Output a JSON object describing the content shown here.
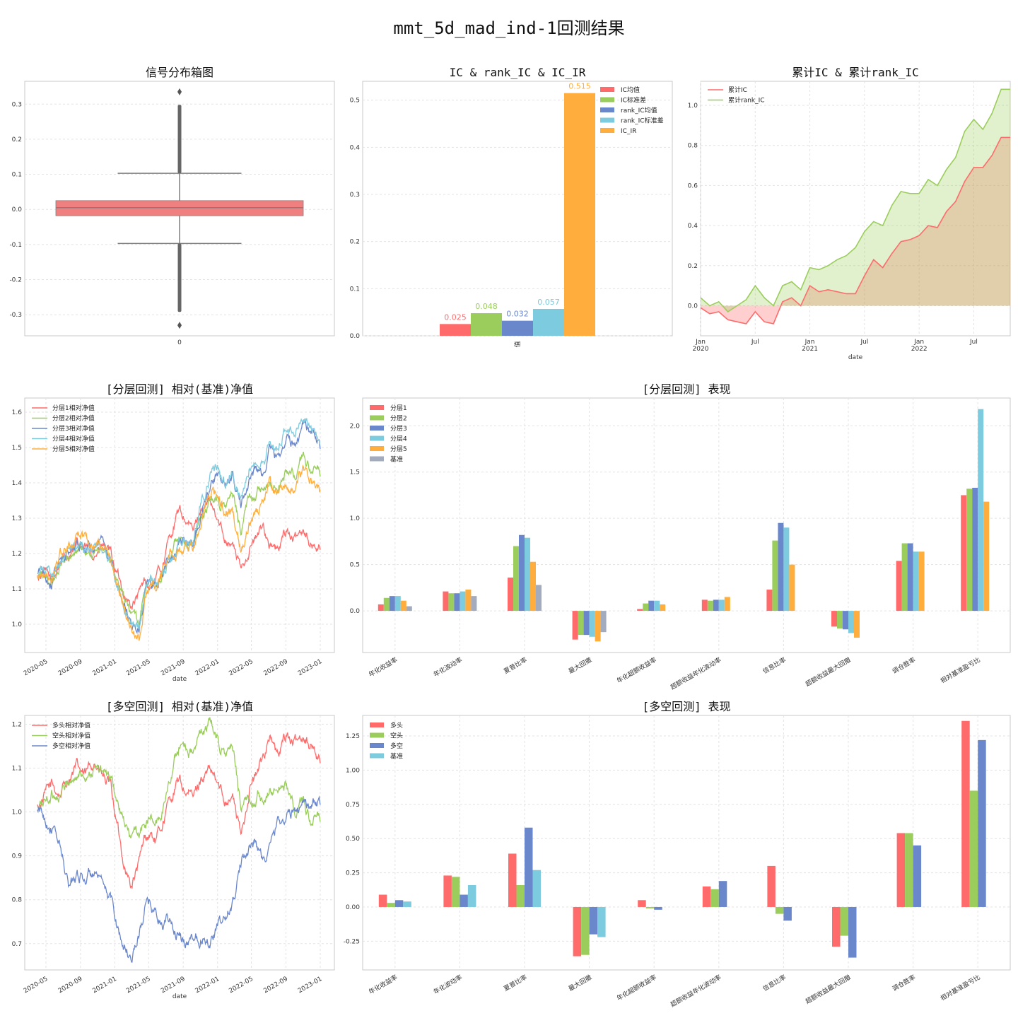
{
  "title": "mmt_5d_mad_ind-1回测结果",
  "colors": {
    "red": "#ff6b6b",
    "green": "#9acd5b",
    "blue": "#6b87cc",
    "cyan": "#7ccbde",
    "orange": "#ffae3d",
    "grey": "#a3acbf",
    "box": "#f08080",
    "whisker": "#7f7f7f"
  },
  "chart_data": [
    {
      "id": "box",
      "type": "box",
      "title": "信号分布箱图",
      "categories": [
        "0"
      ],
      "box": {
        "q1": -0.018,
        "median": 0.005,
        "q3": 0.025,
        "whisker_low": -0.097,
        "whisker_high": 0.103,
        "outlier_low_dense_to": -0.292,
        "outlier_high_dense_to": 0.298,
        "min": -0.33,
        "max": 0.335
      },
      "ylim": [
        -0.36,
        0.365
      ],
      "yticks": [
        "-0.3",
        "-0.2",
        "-0.1",
        "0.0",
        "0.1",
        "0.2",
        "0.3"
      ],
      "grid": true
    },
    {
      "id": "ic_bar",
      "type": "bar",
      "title": "IC & rank_IC & IC_IR",
      "xlabel": "值",
      "series": [
        {
          "name": "IC均值",
          "value": 0.025,
          "label": "0.025"
        },
        {
          "name": "IC标准差",
          "value": 0.048,
          "label": "0.048"
        },
        {
          "name": "rank_IC均值",
          "value": 0.032,
          "label": "0.032"
        },
        {
          "name": "rank_IC标准差",
          "value": 0.057,
          "label": "0.057"
        },
        {
          "name": "IC_IR",
          "value": 0.515,
          "label": "0.515"
        }
      ],
      "ylim": [
        0,
        0.54
      ],
      "yticks": [
        "0.0",
        "0.1",
        "0.2",
        "0.3",
        "0.4",
        "0.5"
      ],
      "legend": "top-right",
      "grid": true
    },
    {
      "id": "cum_ic",
      "type": "area",
      "title": "累计IC & 累计rank_IC",
      "xlabel": "date",
      "x_start": "2020-01",
      "xticks": [
        {
          "label": "Jan",
          "sub": "2020",
          "x": 0
        },
        {
          "label": "Jul",
          "sub": "",
          "x": 6
        },
        {
          "label": "Jan",
          "sub": "2021",
          "x": 12
        },
        {
          "label": "Jul",
          "sub": "",
          "x": 18
        },
        {
          "label": "Jan",
          "sub": "2022",
          "x": 24
        },
        {
          "label": "Jul",
          "sub": "",
          "x": 30
        }
      ],
      "series": [
        {
          "name": "累计IC",
          "values": [
            -0.01,
            -0.04,
            -0.03,
            -0.07,
            -0.08,
            -0.09,
            -0.03,
            -0.08,
            -0.09,
            0.02,
            0.04,
            0.0,
            0.1,
            0.07,
            0.08,
            0.07,
            0.06,
            0.06,
            0.15,
            0.23,
            0.19,
            0.26,
            0.32,
            0.33,
            0.35,
            0.4,
            0.39,
            0.47,
            0.52,
            0.62,
            0.69,
            0.69,
            0.75,
            0.84,
            0.84
          ]
        },
        {
          "name": "累计rank_IC",
          "values": [
            0.04,
            0.0,
            0.02,
            -0.03,
            0.0,
            0.03,
            0.1,
            0.04,
            0.0,
            0.1,
            0.12,
            0.08,
            0.19,
            0.18,
            0.2,
            0.23,
            0.25,
            0.29,
            0.37,
            0.42,
            0.4,
            0.5,
            0.57,
            0.56,
            0.56,
            0.63,
            0.6,
            0.68,
            0.74,
            0.87,
            0.93,
            0.88,
            0.96,
            1.08,
            1.08
          ]
        }
      ],
      "ylim": [
        -0.15,
        1.12
      ],
      "yticks": [
        "0.0",
        "0.2",
        "0.4",
        "0.6",
        "0.8",
        "1.0"
      ],
      "legend": "top-left",
      "grid": true
    },
    {
      "id": "layer_nav",
      "type": "line",
      "title": "[分层回测] 相对(基准)净值",
      "xlabel": "date",
      "xticks": [
        "2020-05",
        "2020-09",
        "2021-01",
        "2021-05",
        "2021-09",
        "2022-01",
        "2022-05",
        "2022-09",
        "2023-01"
      ],
      "x_start": "2020-04-01",
      "x_end": "2023-01-01",
      "anchors_x": [
        0,
        0.02,
        0.05,
        0.08,
        0.11,
        0.14,
        0.17,
        0.2,
        0.23,
        0.26,
        0.3,
        0.33,
        0.36,
        0.38,
        0.4,
        0.42,
        0.44,
        0.47,
        0.5,
        0.52,
        0.55,
        0.58,
        0.61,
        0.63,
        0.66,
        0.69,
        0.72,
        0.75,
        0.78,
        0.8,
        0.82,
        0.85,
        0.88,
        0.91,
        0.94,
        0.97,
        1.0
      ],
      "series": [
        {
          "name": "分层1相对净值",
          "values": [
            1.13,
            1.15,
            1.12,
            1.18,
            1.2,
            1.22,
            1.21,
            1.2,
            1.22,
            1.19,
            1.1,
            1.05,
            1.08,
            1.12,
            1.1,
            1.13,
            1.16,
            1.25,
            1.32,
            1.3,
            1.26,
            1.33,
            1.34,
            1.3,
            1.25,
            1.23,
            1.15,
            1.22,
            1.25,
            1.28,
            1.23,
            1.2,
            1.27,
            1.23,
            1.28,
            1.22,
            1.22
          ]
        },
        {
          "name": "分层2相对净值",
          "values": [
            1.13,
            1.14,
            1.12,
            1.17,
            1.19,
            1.21,
            1.22,
            1.2,
            1.21,
            1.17,
            1.08,
            1.03,
            1.0,
            1.1,
            1.12,
            1.1,
            1.14,
            1.2,
            1.25,
            1.24,
            1.22,
            1.3,
            1.34,
            1.36,
            1.33,
            1.36,
            1.27,
            1.36,
            1.38,
            1.36,
            1.4,
            1.38,
            1.43,
            1.42,
            1.47,
            1.44,
            1.42
          ]
        },
        {
          "name": "分层3相对净值",
          "values": [
            1.14,
            1.15,
            1.12,
            1.18,
            1.2,
            1.23,
            1.22,
            1.21,
            1.22,
            1.17,
            1.07,
            1.01,
            0.98,
            1.09,
            1.12,
            1.11,
            1.14,
            1.18,
            1.22,
            1.24,
            1.23,
            1.33,
            1.4,
            1.42,
            1.39,
            1.42,
            1.33,
            1.42,
            1.44,
            1.42,
            1.49,
            1.47,
            1.53,
            1.5,
            1.58,
            1.54,
            1.5
          ]
        },
        {
          "name": "分层4相对净值",
          "values": [
            1.14,
            1.15,
            1.13,
            1.18,
            1.21,
            1.23,
            1.22,
            1.21,
            1.22,
            1.17,
            1.07,
            1.01,
            0.99,
            1.09,
            1.12,
            1.11,
            1.14,
            1.19,
            1.23,
            1.25,
            1.24,
            1.35,
            1.42,
            1.44,
            1.4,
            1.43,
            1.35,
            1.45,
            1.47,
            1.44,
            1.52,
            1.49,
            1.56,
            1.53,
            1.6,
            1.56,
            1.52
          ]
        },
        {
          "name": "分层5相对净值",
          "values": [
            1.13,
            1.16,
            1.12,
            1.2,
            1.22,
            1.26,
            1.25,
            1.22,
            1.23,
            1.18,
            1.06,
            0.99,
            0.95,
            1.08,
            1.1,
            1.12,
            1.16,
            1.2,
            1.19,
            1.21,
            1.22,
            1.3,
            1.36,
            1.37,
            1.33,
            1.33,
            1.2,
            1.3,
            1.32,
            1.34,
            1.4,
            1.36,
            1.41,
            1.38,
            1.44,
            1.4,
            1.37
          ]
        }
      ],
      "ylim": [
        0.92,
        1.64
      ],
      "yticks": [
        "1.0",
        "1.1",
        "1.2",
        "1.3",
        "1.4",
        "1.5",
        "1.6"
      ],
      "legend": "top-left",
      "grid": true
    },
    {
      "id": "layer_perf",
      "type": "bar",
      "title": "[分层回测] 表现",
      "categories": [
        "年化收益率",
        "年化波动率",
        "夏普比率",
        "最大回撤",
        "年化超额收益率",
        "超额收益年化波动率",
        "信息比率",
        "超额收益最大回撤",
        "调仓胜率",
        "相对基准盈亏比"
      ],
      "series": [
        {
          "name": "分层1",
          "values": [
            0.07,
            0.21,
            0.36,
            -0.31,
            0.02,
            0.12,
            0.23,
            -0.17,
            0.54,
            1.25
          ]
        },
        {
          "name": "分层2",
          "values": [
            0.14,
            0.19,
            0.7,
            -0.26,
            0.08,
            0.11,
            0.76,
            -0.19,
            0.73,
            1.32
          ]
        },
        {
          "name": "分层3",
          "values": [
            0.16,
            0.19,
            0.82,
            -0.26,
            0.11,
            0.12,
            0.95,
            -0.2,
            0.73,
            1.33
          ]
        },
        {
          "name": "分层4",
          "values": [
            0.16,
            0.21,
            0.79,
            -0.28,
            0.11,
            0.12,
            0.9,
            -0.24,
            0.64,
            2.18
          ]
        },
        {
          "name": "分层5",
          "values": [
            0.11,
            0.23,
            0.53,
            -0.33,
            0.07,
            0.15,
            0.5,
            -0.29,
            0.64,
            1.18
          ]
        },
        {
          "name": "基准",
          "values": [
            0.05,
            0.16,
            0.28,
            -0.23,
            null,
            null,
            null,
            null,
            null,
            null
          ]
        }
      ],
      "ylim": [
        -0.45,
        2.3
      ],
      "yticks": [
        "0.0",
        "0.5",
        "1.0",
        "1.5",
        "2.0"
      ],
      "legend": "top-left",
      "grid": true
    },
    {
      "id": "ls_nav",
      "type": "line",
      "title": "[多空回测] 相对(基准)净值",
      "xlabel": "date",
      "xticks": [
        "2020-05",
        "2020-09",
        "2021-01",
        "2021-05",
        "2021-09",
        "2022-01",
        "2022-05",
        "2022-09",
        "2023-01"
      ],
      "x_start": "2020-04-01",
      "x_end": "2023-01-01",
      "anchors_x": [
        0,
        0.02,
        0.05,
        0.08,
        0.11,
        0.14,
        0.17,
        0.2,
        0.23,
        0.26,
        0.3,
        0.33,
        0.36,
        0.38,
        0.4,
        0.42,
        0.44,
        0.47,
        0.5,
        0.52,
        0.55,
        0.58,
        0.61,
        0.63,
        0.66,
        0.69,
        0.72,
        0.75,
        0.78,
        0.8,
        0.82,
        0.85,
        0.88,
        0.91,
        0.94,
        0.97,
        1.0
      ],
      "series": [
        {
          "name": "多头相对净值",
          "values": [
            1.01,
            1.03,
            1.06,
            1.04,
            1.08,
            1.1,
            1.08,
            1.12,
            1.08,
            1.05,
            0.9,
            0.83,
            0.88,
            0.94,
            0.95,
            0.93,
            0.97,
            1.03,
            1.07,
            1.05,
            1.03,
            1.08,
            1.09,
            1.07,
            1.03,
            1.04,
            0.94,
            1.06,
            1.09,
            1.13,
            1.18,
            1.12,
            1.18,
            1.15,
            1.18,
            1.15,
            1.12
          ]
        },
        {
          "name": "空头相对净值",
          "values": [
            1.0,
            1.02,
            1.04,
            1.04,
            1.07,
            1.08,
            1.09,
            1.1,
            1.09,
            1.07,
            0.98,
            0.94,
            0.95,
            0.97,
            0.98,
            0.97,
            1.0,
            1.08,
            1.15,
            1.16,
            1.13,
            1.18,
            1.2,
            1.18,
            1.13,
            1.14,
            1.02,
            1.02,
            1.04,
            1.0,
            1.05,
            1.05,
            1.06,
            1.0,
            1.02,
            0.98,
            0.98
          ]
        },
        {
          "name": "多空相对净值",
          "values": [
            1.0,
            0.99,
            0.97,
            0.92,
            0.83,
            0.86,
            0.85,
            0.86,
            0.82,
            0.8,
            0.7,
            0.67,
            0.72,
            0.78,
            0.79,
            0.77,
            0.74,
            0.75,
            0.71,
            0.7,
            0.72,
            0.72,
            0.71,
            0.73,
            0.75,
            0.79,
            0.88,
            0.93,
            0.92,
            0.89,
            0.91,
            0.98,
            0.99,
            1.0,
            1.03,
            1.01,
            1.02
          ]
        }
      ],
      "ylim": [
        0.64,
        1.22
      ],
      "yticks": [
        "0.7",
        "0.8",
        "0.9",
        "1.0",
        "1.1",
        "1.2"
      ],
      "legend": "top-left",
      "grid": true
    },
    {
      "id": "ls_perf",
      "type": "bar",
      "title": "[多空回测] 表现",
      "categories": [
        "年化收益率",
        "年化波动率",
        "夏普比率",
        "最大回撤",
        "年化超额收益率",
        "超额收益年化波动率",
        "信息比率",
        "超额收益最大回撤",
        "调仓胜率",
        "相对基准盈亏比"
      ],
      "series": [
        {
          "name": "多头",
          "values": [
            0.09,
            0.23,
            0.39,
            -0.36,
            0.05,
            0.15,
            0.3,
            -0.29,
            0.54,
            1.36
          ]
        },
        {
          "name": "空头",
          "values": [
            0.03,
            0.22,
            0.16,
            -0.35,
            -0.01,
            0.13,
            -0.05,
            -0.21,
            0.54,
            0.85
          ]
        },
        {
          "name": "多空",
          "values": [
            0.05,
            0.09,
            0.58,
            -0.2,
            -0.02,
            0.19,
            -0.1,
            -0.37,
            0.45,
            1.22
          ]
        },
        {
          "name": "基准",
          "values": [
            0.04,
            0.16,
            0.27,
            -0.22,
            null,
            null,
            null,
            null,
            null,
            null
          ]
        }
      ],
      "ylim": [
        -0.46,
        1.4
      ],
      "yticks": [
        "-0.25",
        "0.00",
        "0.25",
        "0.50",
        "0.75",
        "1.00",
        "1.25"
      ],
      "legend": "top-left",
      "grid": true
    }
  ]
}
